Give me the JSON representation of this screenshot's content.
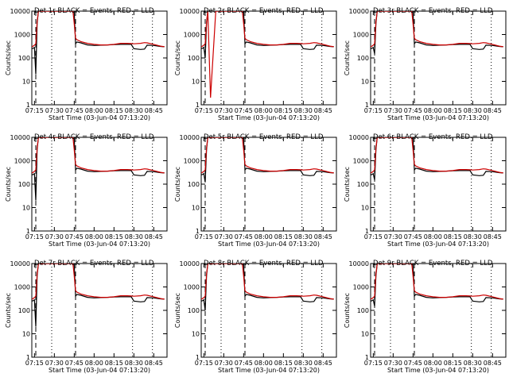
{
  "chart_data": {
    "type": "line",
    "layout": "3x3 grid of detector panels",
    "y_scale": "log",
    "ylim": [
      1,
      10000
    ],
    "yticks": [
      1,
      10,
      100,
      1000,
      10000
    ],
    "ytick_labels": [
      "1",
      "10",
      "100",
      "1000",
      "10000"
    ],
    "ylabel": "Counts/sec",
    "xlim": [
      "07:13",
      "08:55"
    ],
    "xticks": [
      "07:15",
      "07:30",
      "07:45",
      "08:00",
      "08:15",
      "08:30",
      "08:45"
    ],
    "xlabel": "Start Time (03-Jun-04 07:13:20)",
    "grid": false,
    "colors": {
      "events": "#000000",
      "lld": "#cc0000"
    },
    "time_markers": [
      {
        "time": "07:16",
        "style": "dashed"
      },
      {
        "time": "07:28",
        "style": "dotted"
      },
      {
        "time": "07:46",
        "style": "dashed"
      },
      {
        "time": "08:29",
        "style": "dotted"
      },
      {
        "time": "08:44",
        "style": "dotted"
      }
    ],
    "x": [
      "07:13",
      "07:14",
      "07:15",
      "07:16",
      "07:17",
      "07:18",
      "07:20",
      "07:24",
      "07:30",
      "07:40",
      "07:44",
      "07:45",
      "07:46",
      "07:47",
      "07:50",
      "07:55",
      "08:00",
      "08:05",
      "08:10",
      "08:15",
      "08:20",
      "08:25",
      "08:28",
      "08:30",
      "08:35",
      "08:38",
      "08:40",
      "08:45",
      "08:50",
      "08:53"
    ],
    "panels": [
      {
        "title": "Det 1r BLACK = Events, RED = LLD",
        "series": [
          {
            "name": "Events",
            "values": [
              250,
              260,
              280,
              20,
              3000,
              10000,
              10000,
              10000,
              10000,
              10000,
              10000,
              10000,
              400,
              480,
              440,
              360,
              340,
              350,
              360,
              370,
              380,
              380,
              380,
              250,
              230,
              240,
              350,
              340,
              310,
              300
            ]
          },
          {
            "name": "LLD",
            "values": [
              300,
              320,
              350,
              400,
              3500,
              10000,
              10000,
              10000,
              10000,
              10000,
              10000,
              3000,
              700,
              600,
              500,
              420,
              380,
              360,
              360,
              380,
              420,
              420,
              410,
              400,
              420,
              450,
              440,
              380,
              320,
              300
            ]
          }
        ]
      },
      {
        "title": "Det 2r BLACK = Events, RED = LLD",
        "series": [
          {
            "name": "Events",
            "values": [
              250,
              260,
              280,
              100,
              3000,
              10000,
              10000,
              10000,
              10000,
              10000,
              10000,
              10000,
              400,
              480,
              440,
              360,
              340,
              350,
              360,
              370,
              380,
              380,
              380,
              250,
              230,
              240,
              350,
              340,
              310,
              300
            ]
          },
          {
            "name": "LLD",
            "values": [
              300,
              320,
              350,
              400,
              3500,
              10000,
              2,
              10000,
              10000,
              10000,
              10000,
              3000,
              700,
              600,
              500,
              420,
              380,
              360,
              360,
              380,
              420,
              420,
              410,
              400,
              420,
              450,
              440,
              380,
              320,
              300
            ]
          }
        ]
      },
      {
        "title": "Det 3r BLACK = Events, RED = LLD",
        "series": [
          {
            "name": "Events",
            "values": [
              250,
              260,
              280,
              150,
              3000,
              10000,
              10000,
              10000,
              10000,
              10000,
              10000,
              10000,
              400,
              480,
              440,
              360,
              340,
              350,
              360,
              370,
              380,
              380,
              380,
              250,
              230,
              240,
              350,
              340,
              310,
              300
            ]
          },
          {
            "name": "LLD",
            "values": [
              300,
              320,
              350,
              400,
              3500,
              10000,
              10000,
              10000,
              10000,
              10000,
              10000,
              3000,
              700,
              600,
              500,
              420,
              380,
              360,
              360,
              380,
              420,
              420,
              410,
              400,
              420,
              450,
              440,
              380,
              320,
              300
            ]
          }
        ]
      },
      {
        "title": "Det 4r BLACK = Events, RED = LLD",
        "series": [
          {
            "name": "Events",
            "values": [
              250,
              260,
              280,
              20,
              3000,
              10000,
              10000,
              10000,
              10000,
              10000,
              10000,
              10000,
              400,
              480,
              440,
              360,
              340,
              350,
              360,
              370,
              380,
              380,
              380,
              250,
              230,
              240,
              350,
              340,
              310,
              300
            ]
          },
          {
            "name": "LLD",
            "values": [
              300,
              320,
              350,
              400,
              3500,
              10000,
              10000,
              10000,
              10000,
              10000,
              10000,
              3000,
              700,
              600,
              500,
              420,
              380,
              360,
              360,
              380,
              420,
              420,
              410,
              400,
              420,
              450,
              440,
              380,
              320,
              300
            ]
          }
        ]
      },
      {
        "title": "Det 5r BLACK = Events, RED = LLD",
        "series": [
          {
            "name": "Events",
            "values": [
              250,
              260,
              280,
              120,
              3000,
              10000,
              10000,
              10000,
              10000,
              10000,
              10000,
              10000,
              400,
              480,
              440,
              360,
              340,
              350,
              360,
              370,
              380,
              380,
              380,
              250,
              230,
              240,
              350,
              340,
              310,
              300
            ]
          },
          {
            "name": "LLD",
            "values": [
              300,
              320,
              350,
              400,
              3500,
              10000,
              10000,
              10000,
              10000,
              10000,
              10000,
              3000,
              700,
              600,
              500,
              420,
              380,
              360,
              360,
              380,
              420,
              420,
              410,
              400,
              420,
              450,
              440,
              380,
              320,
              300
            ]
          }
        ]
      },
      {
        "title": "Det 6r BLACK = Events, RED = LLD",
        "series": [
          {
            "name": "Events",
            "values": [
              250,
              260,
              280,
              150,
              3000,
              10000,
              10000,
              10000,
              10000,
              10000,
              10000,
              10000,
              400,
              480,
              440,
              360,
              340,
              350,
              360,
              370,
              380,
              380,
              380,
              250,
              230,
              240,
              350,
              340,
              310,
              300
            ]
          },
          {
            "name": "LLD",
            "values": [
              300,
              320,
              350,
              400,
              3500,
              10000,
              10000,
              10000,
              10000,
              10000,
              10000,
              3000,
              700,
              600,
              500,
              420,
              380,
              360,
              360,
              380,
              420,
              420,
              410,
              400,
              420,
              450,
              440,
              380,
              320,
              300
            ]
          }
        ]
      },
      {
        "title": "Det 7r BLACK = Events, RED = LLD",
        "series": [
          {
            "name": "Events",
            "values": [
              250,
              260,
              280,
              20,
              3000,
              10000,
              10000,
              10000,
              10000,
              10000,
              10000,
              10000,
              400,
              480,
              440,
              360,
              340,
              350,
              360,
              370,
              380,
              380,
              380,
              250,
              230,
              240,
              350,
              340,
              310,
              300
            ]
          },
          {
            "name": "LLD",
            "values": [
              300,
              320,
              350,
              400,
              3500,
              10000,
              10000,
              10000,
              10000,
              10000,
              10000,
              3000,
              700,
              600,
              500,
              420,
              380,
              360,
              360,
              380,
              420,
              420,
              410,
              400,
              420,
              450,
              440,
              380,
              320,
              300
            ]
          }
        ]
      },
      {
        "title": "Det 8r BLACK = Events, RED = LLD",
        "series": [
          {
            "name": "Events",
            "values": [
              250,
              260,
              280,
              100,
              3000,
              10000,
              10000,
              10000,
              10000,
              10000,
              10000,
              10000,
              400,
              480,
              440,
              360,
              340,
              350,
              360,
              370,
              380,
              380,
              380,
              250,
              230,
              240,
              350,
              340,
              310,
              300
            ]
          },
          {
            "name": "LLD",
            "values": [
              300,
              320,
              350,
              400,
              3500,
              10000,
              10000,
              10000,
              10000,
              10000,
              10000,
              3000,
              700,
              600,
              500,
              420,
              380,
              360,
              360,
              380,
              420,
              420,
              410,
              400,
              420,
              450,
              440,
              380,
              320,
              300
            ]
          }
        ]
      },
      {
        "title": "Det 9r BLACK = Events, RED = LLD",
        "series": [
          {
            "name": "Events",
            "values": [
              250,
              260,
              280,
              150,
              3000,
              10000,
              10000,
              10000,
              10000,
              10000,
              10000,
              10000,
              400,
              480,
              440,
              360,
              340,
              350,
              360,
              370,
              380,
              380,
              380,
              250,
              230,
              240,
              350,
              340,
              310,
              300
            ]
          },
          {
            "name": "LLD",
            "values": [
              300,
              320,
              350,
              400,
              3500,
              10000,
              10000,
              10000,
              10000,
              10000,
              10000,
              3000,
              700,
              600,
              500,
              420,
              380,
              360,
              360,
              380,
              420,
              420,
              410,
              400,
              420,
              450,
              440,
              380,
              320,
              300
            ]
          }
        ]
      }
    ]
  }
}
